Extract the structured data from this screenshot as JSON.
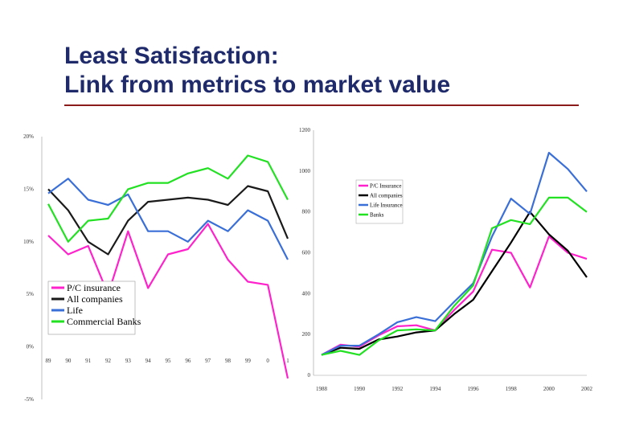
{
  "slide": {
    "title_line1": "Least Satisfaction:",
    "title_line2": "Link from metrics to market value"
  },
  "colors": {
    "title": "#1f2a6b",
    "rule": "#8b1a1a"
  },
  "chart_data": [
    {
      "type": "line",
      "categories": [
        "89",
        "90",
        "91",
        "92",
        "93",
        "94",
        "95",
        "96",
        "97",
        "98",
        "99",
        "0",
        "1"
      ],
      "yticks": [
        "20%",
        "15%",
        "10%",
        "5%",
        "0%",
        "-5%"
      ],
      "ylim": [
        -5,
        20
      ],
      "legend_position": "bottom-left",
      "series": [
        {
          "name": "P/C insurance",
          "color": "#ff22cc",
          "values": [
            10.6,
            8.8,
            9.6,
            5.0,
            11.0,
            5.6,
            8.8,
            9.3,
            11.7,
            8.3,
            6.2,
            5.9,
            -3.0
          ]
        },
        {
          "name": "All companies",
          "color": "#1a1a1a",
          "values": [
            15.0,
            13.0,
            10.0,
            8.8,
            12.0,
            13.8,
            14.0,
            14.2,
            14.0,
            13.5,
            15.3,
            14.8,
            10.3
          ]
        },
        {
          "name": "Life",
          "color": "#3a6fd8",
          "values": [
            14.6,
            16.0,
            14.0,
            13.5,
            14.5,
            11.0,
            11.0,
            10.0,
            12.0,
            11.0,
            13.0,
            12.0,
            8.3
          ]
        },
        {
          "name": "Commercial Banks",
          "color": "#22e022",
          "values": [
            13.6,
            10.0,
            12.0,
            12.2,
            15.0,
            15.6,
            15.6,
            16.5,
            17.0,
            16.0,
            18.2,
            17.6,
            14.0
          ]
        }
      ]
    },
    {
      "type": "line",
      "x": [
        1988,
        1989,
        1990,
        1991,
        1992,
        1993,
        1994,
        1995,
        1996,
        1997,
        1998,
        1999,
        2000,
        2001,
        2002
      ],
      "xtick_labels": [
        "1988",
        "1990",
        "1992",
        "1994",
        "1996",
        "1998",
        "2000",
        "2002"
      ],
      "yticks": [
        "1200",
        "1000",
        "800",
        "600",
        "400",
        "200",
        "0"
      ],
      "ylim": [
        0,
        1200
      ],
      "legend_position": "top-left",
      "series": [
        {
          "name": "P/C Insurance",
          "color": "#ff22cc",
          "values": [
            100,
            150,
            140,
            195,
            240,
            245,
            220,
            320,
            410,
            615,
            600,
            430,
            680,
            600,
            570
          ]
        },
        {
          "name": "All companies",
          "color": "#000000",
          "values": [
            100,
            135,
            130,
            175,
            190,
            210,
            220,
            300,
            370,
            510,
            650,
            800,
            690,
            610,
            480
          ]
        },
        {
          "name": "Life Insurance",
          "color": "#3a6fd8",
          "values": [
            100,
            145,
            145,
            200,
            260,
            285,
            265,
            360,
            450,
            680,
            865,
            790,
            1090,
            1010,
            900
          ]
        },
        {
          "name": "Banks",
          "color": "#22e022",
          "values": [
            100,
            120,
            100,
            170,
            220,
            225,
            220,
            340,
            440,
            720,
            760,
            740,
            870,
            870,
            800
          ]
        }
      ]
    }
  ]
}
